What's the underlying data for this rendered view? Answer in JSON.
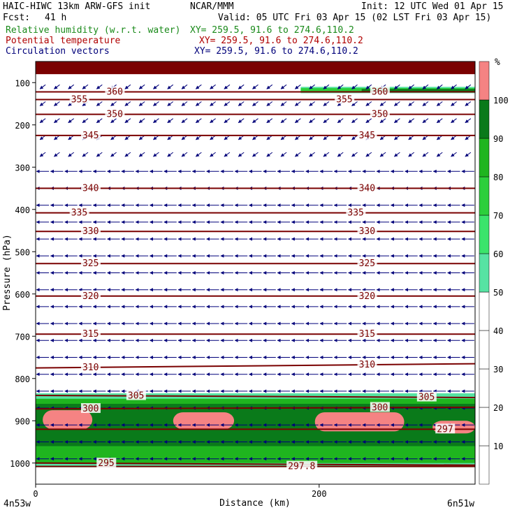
{
  "header": {
    "model": "HAIC-HIWC 13km ARW-GFS init",
    "org": "NCAR/MMM",
    "init": "Init: 12 UTC Wed 01 Apr 15",
    "fcst_label": "Fcst:",
    "fcst_value": "41 h",
    "valid": "Valid: 05 UTC Fri 03 Apr 15 (02 LST Fri 03 Apr 15)",
    "fields": [
      {
        "name": "Relative humidity (w.r.t. water)",
        "xy": "XY= 259.5, 91.6 to 274.6,110.2",
        "color": "#1a8a1a"
      },
      {
        "name": "Potential temperature",
        "xy": "XY= 259.5, 91.6 to 274.6,110.2",
        "color": "#b00000"
      },
      {
        "name": "Circulation vectors",
        "xy": "XY= 259.5, 91.6 to 274.6,110.2",
        "color": "#00007a"
      }
    ]
  },
  "chart_data": {
    "type": "heatmap",
    "xlabel": "Distance (km)",
    "ylabel": "Pressure (hPa)",
    "xlim": [
      0,
      310
    ],
    "ylim": [
      1050,
      50
    ],
    "x_ticks": [
      0,
      200
    ],
    "x_left_label": "4n53w",
    "x_right_label": "6n51w",
    "y_ticks": [
      100,
      200,
      300,
      400,
      500,
      600,
      700,
      800,
      900,
      1000
    ],
    "colorbar": {
      "unit": "%",
      "levels": [
        10,
        20,
        30,
        40,
        50,
        60,
        70,
        80,
        90,
        100
      ],
      "fills": [
        {
          "from": 50,
          "to": 60,
          "color": "#57e3a3"
        },
        {
          "from": 60,
          "to": 70,
          "color": "#3be46c"
        },
        {
          "from": 70,
          "to": 80,
          "color": "#2ccf3c"
        },
        {
          "from": 80,
          "to": 90,
          "color": "#1fb51f"
        },
        {
          "from": 90,
          "to": 100,
          "color": "#0a7a1a"
        },
        {
          "from": 100,
          "to": 110,
          "color": "#f58383"
        }
      ]
    },
    "isentropes": [
      {
        "theta": 360,
        "p": [
          122,
          122
        ],
        "labels": [
          {
            "x": 50,
            "text": "360"
          },
          {
            "x": 237,
            "text": "360"
          }
        ]
      },
      {
        "theta": 355,
        "p": [
          140,
          140
        ],
        "labels": [
          {
            "x": 25,
            "text": "355"
          },
          {
            "x": 212,
            "text": "355"
          }
        ]
      },
      {
        "theta": 350,
        "p": [
          175,
          175
        ],
        "labels": [
          {
            "x": 50,
            "text": "350"
          },
          {
            "x": 237,
            "text": "350"
          }
        ]
      },
      {
        "theta": 345,
        "p": [
          225,
          225
        ],
        "labels": [
          {
            "x": 33,
            "text": "345"
          },
          {
            "x": 228,
            "text": "345"
          }
        ]
      },
      {
        "theta": 340,
        "p": [
          350,
          350
        ],
        "labels": [
          {
            "x": 33,
            "text": "340"
          },
          {
            "x": 228,
            "text": "340"
          }
        ]
      },
      {
        "theta": 335,
        "p": [
          408,
          408
        ],
        "labels": [
          {
            "x": 25,
            "text": "335"
          },
          {
            "x": 220,
            "text": "335"
          }
        ]
      },
      {
        "theta": 330,
        "p": [
          452,
          452
        ],
        "labels": [
          {
            "x": 33,
            "text": "330"
          },
          {
            "x": 228,
            "text": "330"
          }
        ]
      },
      {
        "theta": 325,
        "p": [
          528,
          528
        ],
        "labels": [
          {
            "x": 33,
            "text": "325"
          },
          {
            "x": 228,
            "text": "325"
          }
        ]
      },
      {
        "theta": 320,
        "p": [
          605,
          605
        ],
        "labels": [
          {
            "x": 33,
            "text": "320"
          },
          {
            "x": 228,
            "text": "320"
          }
        ]
      },
      {
        "theta": 315,
        "p": [
          695,
          695
        ],
        "labels": [
          {
            "x": 33,
            "text": "315"
          },
          {
            "x": 228,
            "text": "315"
          }
        ]
      },
      {
        "theta": 310,
        "p": [
          775,
          765
        ],
        "labels": [
          {
            "x": 33,
            "text": "310"
          },
          {
            "x": 228,
            "text": "310"
          }
        ]
      },
      {
        "theta": 305,
        "p": [
          840,
          845
        ],
        "labels": [
          {
            "x": 65,
            "text": "305"
          },
          {
            "x": 270,
            "text": "305"
          }
        ]
      },
      {
        "theta": 300,
        "p": [
          872,
          868
        ],
        "labels": [
          {
            "x": 33,
            "text": "300"
          },
          {
            "x": 237,
            "text": "300"
          }
        ]
      },
      {
        "theta": 297,
        "p": [
          920,
          920
        ],
        "labels": [
          {
            "x": 283,
            "text": "297"
          }
        ]
      },
      {
        "theta": 295,
        "p": [
          1000,
          1005
        ],
        "labels": [
          {
            "x": 44,
            "text": "295"
          }
        ]
      },
      {
        "theta": 297.8,
        "p": [
          1008,
          1008
        ],
        "labels": [
          {
            "x": 178,
            "text": "297.8"
          }
        ]
      }
    ],
    "rh_regions": [
      {
        "rh": 105,
        "x": [
          0,
          310
        ],
        "p": [
          50,
          80
        ]
      },
      {
        "rh": 55,
        "x": [
          187,
          310
        ],
        "p": [
          110,
          125
        ]
      },
      {
        "rh": 75,
        "x": [
          187,
          310
        ],
        "p": [
          113,
          122
        ]
      },
      {
        "rh": 95,
        "x": [
          230,
          310
        ],
        "p": [
          115,
          121
        ]
      },
      {
        "rh": 55,
        "x": [
          0,
          310
        ],
        "p": [
          835,
          1010
        ]
      },
      {
        "rh": 85,
        "x": [
          0,
          310
        ],
        "p": [
          848,
          1000
        ]
      },
      {
        "rh": 95,
        "x": [
          0,
          310
        ],
        "p": [
          860,
          960
        ]
      },
      {
        "rh": 105,
        "x": [
          5,
          40
        ],
        "p": [
          875,
          920
        ]
      },
      {
        "rh": 105,
        "x": [
          97,
          140
        ],
        "p": [
          880,
          920
        ]
      },
      {
        "rh": 105,
        "x": [
          197,
          260
        ],
        "p": [
          880,
          925
        ]
      },
      {
        "rh": 105,
        "x": [
          280,
          310
        ],
        "p": [
          900,
          930
        ]
      }
    ],
    "vectors": {
      "x_columns": 31,
      "p_levels": [
        110,
        150,
        190,
        230,
        270,
        310,
        350,
        390,
        430,
        470,
        510,
        550,
        590,
        630,
        670,
        710,
        750,
        790,
        830,
        870,
        910,
        950,
        990
      ],
      "upper_direction": "westward"
    }
  }
}
